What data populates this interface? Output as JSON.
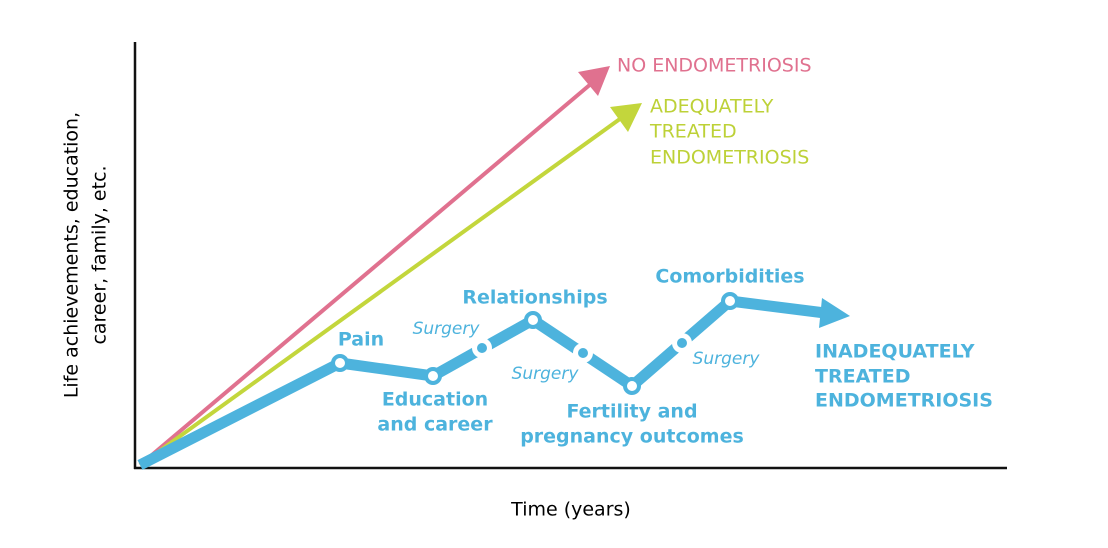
{
  "y_axis_label": [
    "Life achievements, education,",
    "career, family, etc."
  ],
  "x_axis_label": "Time (years)",
  "curves": [
    {
      "label": [
        "NO ENDOMETRIOSIS"
      ]
    },
    {
      "label": [
        "ADEQUATELY",
        "TREATED",
        "ENDOMETRIOSIS"
      ]
    },
    {
      "label": [
        "INADEQUATELY",
        "TREATED",
        "ENDOMETRIOSIS"
      ]
    }
  ],
  "events": [
    {
      "label": [
        "Pain"
      ]
    },
    {
      "label": [
        "Education",
        "and career"
      ]
    },
    {
      "label": [
        "Relationships"
      ]
    },
    {
      "label": [
        "Fertility and",
        "pregnancy outcomes"
      ]
    },
    {
      "label": [
        "Comorbidities"
      ]
    }
  ],
  "interventions": [
    "Surgery",
    "Surgery",
    "Surgery"
  ]
}
